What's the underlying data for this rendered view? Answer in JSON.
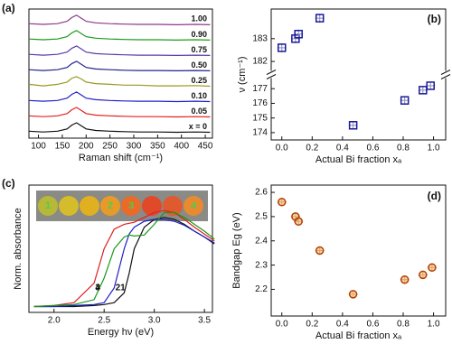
{
  "chart_data": [
    {
      "type": "line",
      "panel_label": "(a)",
      "xlabel": "Raman shift (cm⁻¹)",
      "x": [
        80,
        110,
        140,
        160,
        170,
        180,
        190,
        200,
        220,
        250,
        280,
        310,
        350,
        390,
        430,
        460
      ],
      "xlim": [
        80,
        465
      ],
      "xticks": [
        100,
        150,
        200,
        250,
        300,
        350,
        400,
        450
      ],
      "ylim": [
        0,
        8.4
      ],
      "series": [
        {
          "name": "x = 0",
          "color": "#111111",
          "values": [
            0.45,
            0.4,
            0.45,
            0.6,
            0.85,
            1.0,
            0.8,
            0.6,
            0.5,
            0.45,
            0.42,
            0.4,
            0.4,
            0.38,
            0.4,
            0.38
          ]
        },
        {
          "name": "0.05",
          "color": "#e02020",
          "values": [
            1.45,
            1.4,
            1.45,
            1.6,
            1.85,
            2.0,
            1.8,
            1.6,
            1.5,
            1.45,
            1.42,
            1.4,
            1.4,
            1.38,
            1.4,
            1.38
          ]
        },
        {
          "name": "0.10",
          "color": "#2020c8",
          "values": [
            2.45,
            2.4,
            2.45,
            2.6,
            2.85,
            3.0,
            2.8,
            2.6,
            2.5,
            2.45,
            2.42,
            2.4,
            2.4,
            2.38,
            2.4,
            2.38
          ]
        },
        {
          "name": "0.25",
          "color": "#9a9a20",
          "values": [
            3.5,
            3.4,
            3.5,
            3.65,
            3.9,
            4.0,
            3.85,
            3.65,
            3.55,
            3.5,
            3.45,
            3.45,
            3.4,
            3.4,
            3.42,
            3.38
          ]
        },
        {
          "name": "0.50",
          "color": "#23238a",
          "values": [
            4.45,
            4.4,
            4.45,
            4.6,
            4.85,
            5.0,
            4.8,
            4.6,
            4.5,
            4.45,
            4.42,
            4.4,
            4.4,
            4.38,
            4.4,
            4.38
          ]
        },
        {
          "name": "0.75",
          "color": "#5a3aa8",
          "values": [
            5.45,
            5.4,
            5.45,
            5.6,
            5.85,
            6.0,
            5.8,
            5.6,
            5.5,
            5.45,
            5.42,
            5.4,
            5.4,
            5.38,
            5.4,
            5.38
          ]
        },
        {
          "name": "0.90",
          "color": "#1a9a1a",
          "values": [
            6.45,
            6.4,
            6.45,
            6.6,
            6.85,
            7.0,
            6.8,
            6.6,
            6.5,
            6.45,
            6.42,
            6.4,
            6.4,
            6.38,
            6.4,
            6.38
          ]
        },
        {
          "name": "1.00",
          "color": "#8b3a8b",
          "values": [
            7.45,
            7.4,
            7.45,
            7.6,
            7.85,
            8.0,
            7.8,
            7.6,
            7.5,
            7.45,
            7.42,
            7.4,
            7.4,
            7.38,
            7.4,
            7.38
          ]
        }
      ]
    },
    {
      "type": "scatter",
      "panel_label": "(b)",
      "xlabel": "Actual Bi fraction xₐ",
      "ylabel": "ν (cm⁻¹)",
      "marker": "square",
      "color": "#1a1a9a",
      "err_color": "#8a8ab8",
      "x": [
        0.0,
        0.09,
        0.11,
        0.25,
        0.47,
        0.81,
        0.93,
        0.98
      ],
      "y": [
        182.6,
        183.0,
        183.2,
        183.9,
        174.5,
        176.2,
        176.9,
        177.2
      ],
      "xerr": [
        0.03,
        0.03,
        0.03,
        0.03,
        0.03,
        0.03,
        0.03,
        0.03
      ],
      "yerr": [
        0.2,
        0.2,
        0.2,
        0.2,
        0.2,
        0.2,
        0.2,
        0.2
      ],
      "xlim": [
        -0.07,
        1.08
      ],
      "ylim": [
        173.5,
        184.3
      ],
      "ybreak": [
        177.7,
        181.6
      ],
      "xticks": [
        {
          "value": 0,
          "label": "0.0"
        },
        0.2,
        0.4,
        0.6,
        0.8,
        {
          "value": 1,
          "label": "1.0"
        }
      ],
      "yticks": [
        174,
        175,
        176,
        177,
        182,
        183
      ]
    },
    {
      "type": "line",
      "panel_label": "(c)",
      "xlabel": "Energy hν (eV)",
      "ylabel": "Norm. absorbance",
      "x": [
        1.8,
        2.0,
        2.2,
        2.4,
        2.5,
        2.6,
        2.7,
        2.75,
        2.8,
        2.9,
        3.0,
        3.1,
        3.2,
        3.3,
        3.4,
        3.5,
        3.6
      ],
      "xlim": [
        1.75,
        3.58
      ],
      "ylim": [
        -0.05,
        1.25
      ],
      "xticks": [
        {
          "value": 2,
          "label": "2.0"
        },
        2.5,
        {
          "value": 3,
          "label": "3.0"
        },
        3.5
      ],
      "inset_labels": [
        "1",
        "2",
        "3",
        "4"
      ],
      "series": [
        {
          "name": "1",
          "color": "#111111",
          "values": [
            0.01,
            0.01,
            0.01,
            0.02,
            0.03,
            0.05,
            0.15,
            0.35,
            0.6,
            0.82,
            0.9,
            0.92,
            0.9,
            0.85,
            0.78,
            0.72,
            0.65
          ]
        },
        {
          "name": "2",
          "color": "#2020c8",
          "values": [
            0.01,
            0.01,
            0.02,
            0.03,
            0.05,
            0.2,
            0.6,
            0.75,
            0.82,
            0.88,
            0.9,
            0.9,
            0.88,
            0.84,
            0.78,
            0.72,
            0.66
          ]
        },
        {
          "name": "3",
          "color": "#e02020",
          "values": [
            0.01,
            0.02,
            0.05,
            0.25,
            0.6,
            0.8,
            0.85,
            0.86,
            0.87,
            0.92,
            0.97,
            0.99,
            0.97,
            0.9,
            0.82,
            0.75,
            0.68
          ]
        },
        {
          "name": "4",
          "color": "#1a9a1a",
          "values": [
            0.01,
            0.02,
            0.03,
            0.08,
            0.3,
            0.6,
            0.72,
            0.74,
            0.73,
            0.74,
            0.85,
            0.97,
            0.97,
            0.92,
            0.85,
            0.78,
            0.7
          ]
        }
      ]
    },
    {
      "type": "scatter",
      "panel_label": "(d)",
      "xlabel": "Actual Bi fraction xₐ",
      "ylabel": "Bandgap Eg (eV)",
      "marker": "circle",
      "color": "#b04000",
      "err_color": "#d8a080",
      "x": [
        0.0,
        0.09,
        0.11,
        0.25,
        0.47,
        0.81,
        0.93,
        0.99
      ],
      "y": [
        2.56,
        2.5,
        2.48,
        2.36,
        2.18,
        2.24,
        2.26,
        2.29
      ],
      "xerr": [
        0.03,
        0.03,
        0.03,
        0.03,
        0.03,
        0.03,
        0.03,
        0.03
      ],
      "yerr": [
        0.015,
        0.015,
        0.015,
        0.015,
        0.015,
        0.015,
        0.015,
        0.015
      ],
      "xlim": [
        -0.07,
        1.08
      ],
      "ylim": [
        2.09,
        2.63
      ],
      "xticks": [
        {
          "value": 0,
          "label": "0.0"
        },
        0.2,
        0.4,
        0.6,
        0.8,
        {
          "value": 1,
          "label": "1.0"
        }
      ],
      "yticks": [
        2.2,
        2.3,
        2.4,
        2.5,
        2.6
      ]
    }
  ]
}
